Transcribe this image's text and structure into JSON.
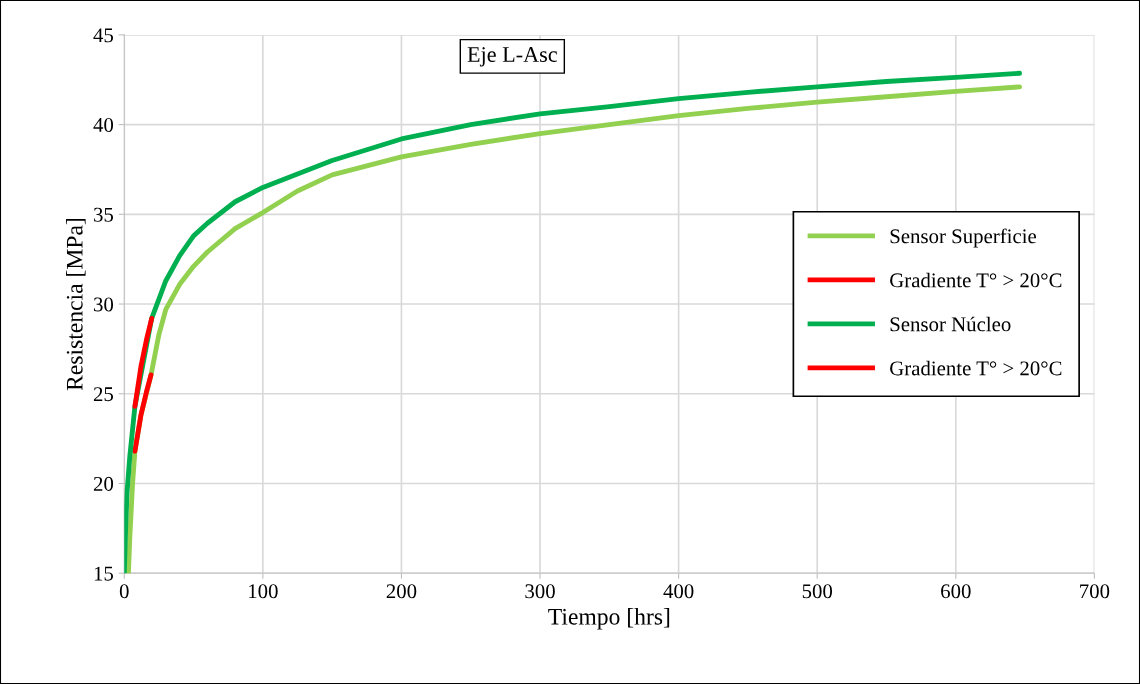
{
  "chart_data": {
    "type": "line",
    "title": "Eje L-Asc",
    "xlabel": "Tiempo [hrs]",
    "ylabel": "Resistencia [MPa]",
    "xlim": [
      0,
      700
    ],
    "xticks": [
      0,
      100,
      200,
      300,
      400,
      500,
      600,
      700
    ],
    "ylim": [
      15,
      45
    ],
    "yticks": [
      15,
      20,
      25,
      30,
      35,
      40,
      45
    ],
    "grid": true,
    "legend": "right",
    "marker": "none",
    "line_style": "solid",
    "series": [
      {
        "name": "Sensor Superficie",
        "color": "#92d050",
        "x": [
          3,
          4,
          5,
          6,
          7.7,
          12,
          19.3,
          25,
          30,
          40,
          50,
          60,
          80,
          100,
          125,
          150,
          200,
          250,
          300,
          350,
          400,
          450,
          500,
          550,
          600,
          646
        ],
        "values": [
          15,
          17,
          18.5,
          20,
          21.8,
          23.8,
          26.05,
          28.3,
          29.7,
          31.1,
          32.1,
          32.9,
          34.2,
          35.1,
          36.3,
          37.2,
          38.2,
          38.9,
          39.5,
          40.0,
          40.5,
          40.9,
          41.25,
          41.55,
          41.85,
          42.1
        ]
      },
      {
        "name": "Gradiente T° > 20°C",
        "color": "#ff0000",
        "x": [
          7.7,
          12,
          16,
          19.3
        ],
        "values": [
          21.8,
          23.8,
          25.1,
          26.05
        ]
      },
      {
        "name": "Sensor Núcleo",
        "color": "#00b050",
        "x": [
          0,
          1,
          2,
          4,
          7.7,
          19.8,
          30,
          40,
          50,
          60,
          80,
          100,
          150,
          200,
          250,
          300,
          350,
          400,
          450,
          500,
          550,
          600,
          646
        ],
        "values": [
          15,
          17.5,
          19.5,
          21.5,
          24.3,
          29.2,
          31.3,
          32.7,
          33.8,
          34.5,
          35.7,
          36.5,
          38.0,
          39.2,
          40.0,
          40.6,
          41.0,
          41.45,
          41.8,
          42.1,
          42.4,
          42.63,
          42.86
        ]
      },
      {
        "name": "Gradiente T° > 20°C",
        "color": "#ff0000",
        "x": [
          7.7,
          12,
          16,
          19.8
        ],
        "values": [
          24.3,
          26.5,
          28.0,
          29.2
        ]
      }
    ]
  }
}
